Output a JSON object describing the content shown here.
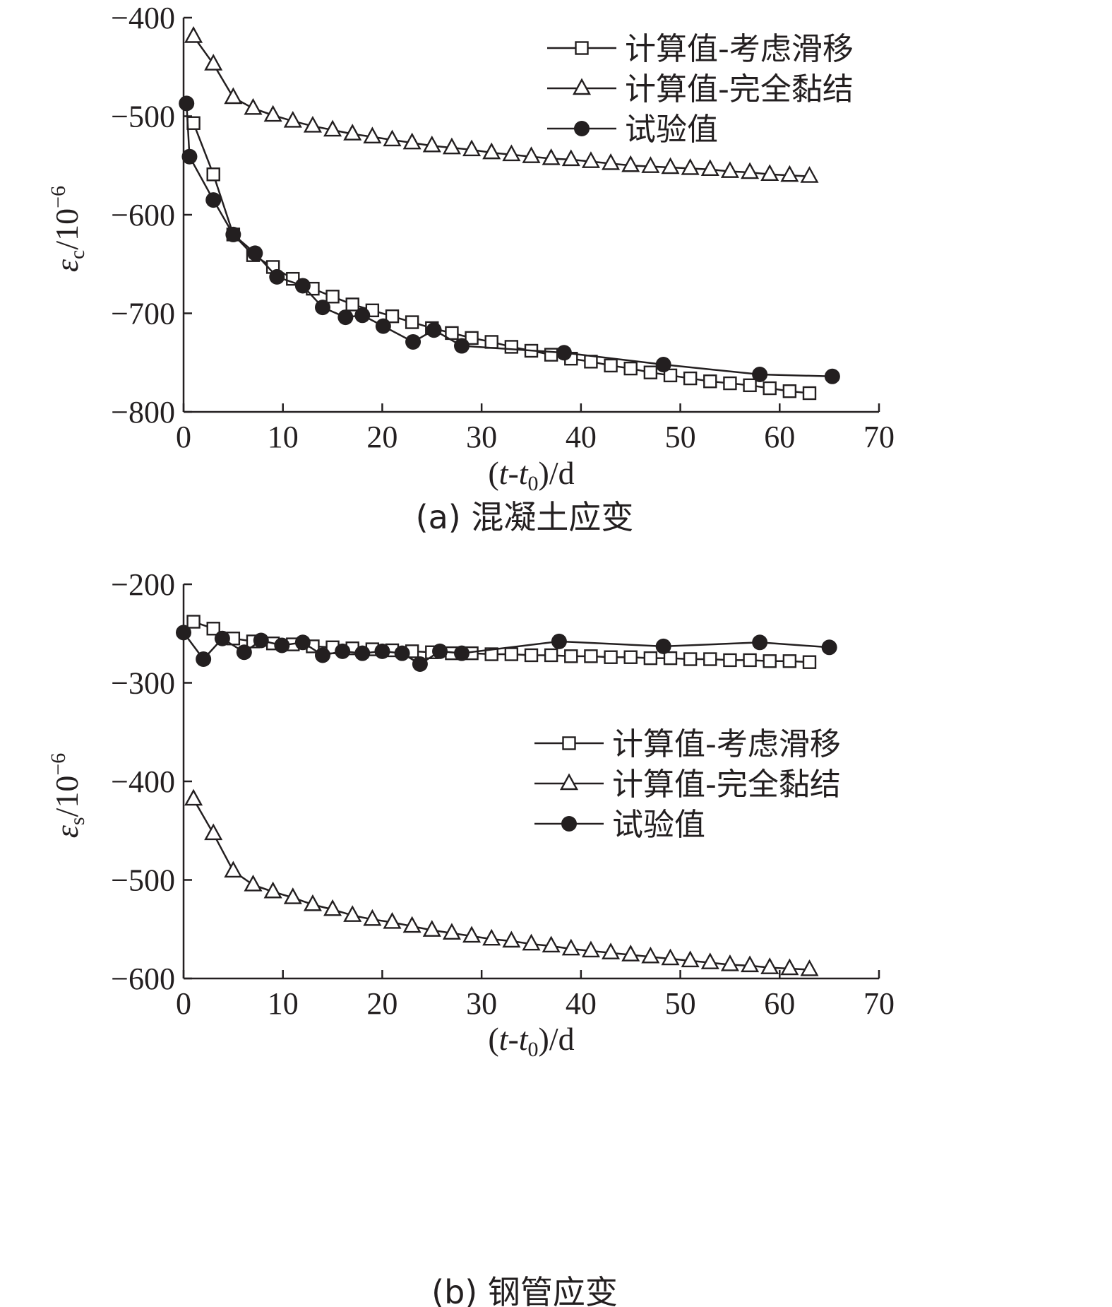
{
  "chart_data": [
    {
      "type": "line",
      "caption": "(a) 混凝土应变",
      "xlabel": {
        "open": "(",
        "var1": "t",
        "dash": "-",
        "var2": "t",
        "sub": "0",
        "close": ")/d"
      },
      "ylabel": {
        "sym": "ε",
        "sub": "c",
        "unit": "/10",
        "exp": "−6"
      },
      "xlim": [
        0,
        70
      ],
      "ylim": [
        -800,
        -400
      ],
      "xticks": [
        0,
        10,
        20,
        30,
        40,
        50,
        60,
        70
      ],
      "yticks": [
        -400,
        -500,
        -600,
        -700,
        -800
      ],
      "ytick_labels": [
        "−400",
        "−500",
        "−600",
        "−700",
        "−800"
      ],
      "legend_position": "top-right",
      "series": [
        {
          "name": "计算值-考虑滑移",
          "marker": "square",
          "x": [
            1,
            3,
            5,
            7,
            9,
            11,
            13,
            15,
            17,
            19,
            21,
            23,
            25,
            27,
            29,
            31,
            33,
            35,
            37,
            39,
            41,
            43,
            45,
            47,
            49,
            51,
            53,
            55,
            57,
            59,
            61,
            63
          ],
          "y": [
            -507,
            -559,
            -620,
            -641,
            -653,
            -665,
            -675,
            -683,
            -691,
            -697,
            -703,
            -709,
            -715,
            -720,
            -725,
            -729,
            -734,
            -738,
            -742,
            -746,
            -749,
            -753,
            -756,
            -760,
            -763,
            -766,
            -769,
            -771,
            -773,
            -776,
            -779,
            -781
          ]
        },
        {
          "name": "计算值-完全黏结",
          "marker": "triangle",
          "x": [
            1,
            3,
            5,
            7,
            9,
            11,
            13,
            15,
            17,
            19,
            21,
            23,
            25,
            27,
            29,
            31,
            33,
            35,
            37,
            39,
            41,
            43,
            45,
            47,
            49,
            51,
            53,
            55,
            57,
            59,
            61,
            63
          ],
          "y": [
            -419,
            -447,
            -481,
            -492,
            -499,
            -505,
            -510,
            -514,
            -518,
            -521,
            -524,
            -527,
            -530,
            -532,
            -534,
            -537,
            -539,
            -541,
            -543,
            -544,
            -546,
            -548,
            -550,
            -551,
            -552,
            -553,
            -554,
            -556,
            -557,
            -559,
            -560,
            -561
          ]
        },
        {
          "name": "试验值",
          "marker": "circle",
          "x": [
            0.3,
            0.6,
            3,
            5,
            7.2,
            9.4,
            12,
            14,
            16.3,
            18,
            20.1,
            23.1,
            25.2,
            28,
            38.3,
            48.3,
            58,
            65.3
          ],
          "y": [
            -487,
            -541,
            -585,
            -620,
            -639,
            -663,
            -672,
            -694,
            -704,
            -702,
            -713,
            -729,
            -717,
            -733,
            -740,
            -752,
            -762,
            -764
          ]
        }
      ]
    },
    {
      "type": "line",
      "caption": "(b) 钢管应变",
      "xlabel": {
        "open": "(",
        "var1": "t",
        "dash": "-",
        "var2": "t",
        "sub": "0",
        "close": ")/d"
      },
      "ylabel": {
        "sym": "ε",
        "sub": "s",
        "unit": "/10",
        "exp": "−6"
      },
      "xlim": [
        0,
        70
      ],
      "ylim": [
        -600,
        -200
      ],
      "xticks": [
        0,
        10,
        20,
        30,
        40,
        50,
        60,
        70
      ],
      "yticks": [
        -200,
        -300,
        -400,
        -500,
        -600
      ],
      "ytick_labels": [
        "−200",
        "−300",
        "−400",
        "−500",
        "−600"
      ],
      "legend_position": "center-right",
      "series": [
        {
          "name": "计算值-考虑滑移",
          "marker": "square",
          "x": [
            1,
            3,
            5,
            7,
            9,
            11,
            13,
            15,
            17,
            19,
            21,
            23,
            25,
            27,
            29,
            31,
            33,
            35,
            37,
            39,
            41,
            43,
            45,
            47,
            49,
            51,
            53,
            55,
            57,
            59,
            61,
            63
          ],
          "y": [
            -238,
            -245,
            -255,
            -258,
            -260,
            -261,
            -263,
            -264,
            -265,
            -266,
            -267,
            -268,
            -269,
            -270,
            -270,
            -271,
            -271,
            -272,
            -272,
            -273,
            -273,
            -274,
            -274,
            -275,
            -275,
            -276,
            -276,
            -277,
            -277,
            -278,
            -278,
            -279
          ]
        },
        {
          "name": "计算值-完全黏结",
          "marker": "triangle",
          "x": [
            1,
            3,
            5,
            7,
            9,
            11,
            13,
            15,
            17,
            19,
            21,
            23,
            25,
            27,
            29,
            31,
            33,
            35,
            37,
            39,
            41,
            43,
            45,
            47,
            49,
            51,
            53,
            55,
            57,
            59,
            61,
            63
          ],
          "y": [
            -418,
            -453,
            -491,
            -505,
            -512,
            -518,
            -525,
            -530,
            -536,
            -540,
            -543,
            -547,
            -551,
            -554,
            -557,
            -560,
            -562,
            -565,
            -567,
            -570,
            -572,
            -574,
            -576,
            -578,
            -580,
            -582,
            -584,
            -586,
            -587,
            -589,
            -590,
            -591
          ]
        },
        {
          "name": "试验值",
          "marker": "circle",
          "x": [
            0,
            2,
            3.9,
            6.1,
            7.8,
            9.9,
            12,
            14,
            16,
            18,
            20,
            22,
            23.8,
            25.8,
            28,
            37.8,
            48.3,
            58,
            65
          ],
          "y": [
            -249,
            -276,
            -255,
            -269,
            -257,
            -262,
            -259,
            -272,
            -268,
            -270,
            -268,
            -270,
            -281,
            -268,
            -270,
            -258,
            -263,
            -259,
            -264
          ]
        }
      ]
    }
  ]
}
